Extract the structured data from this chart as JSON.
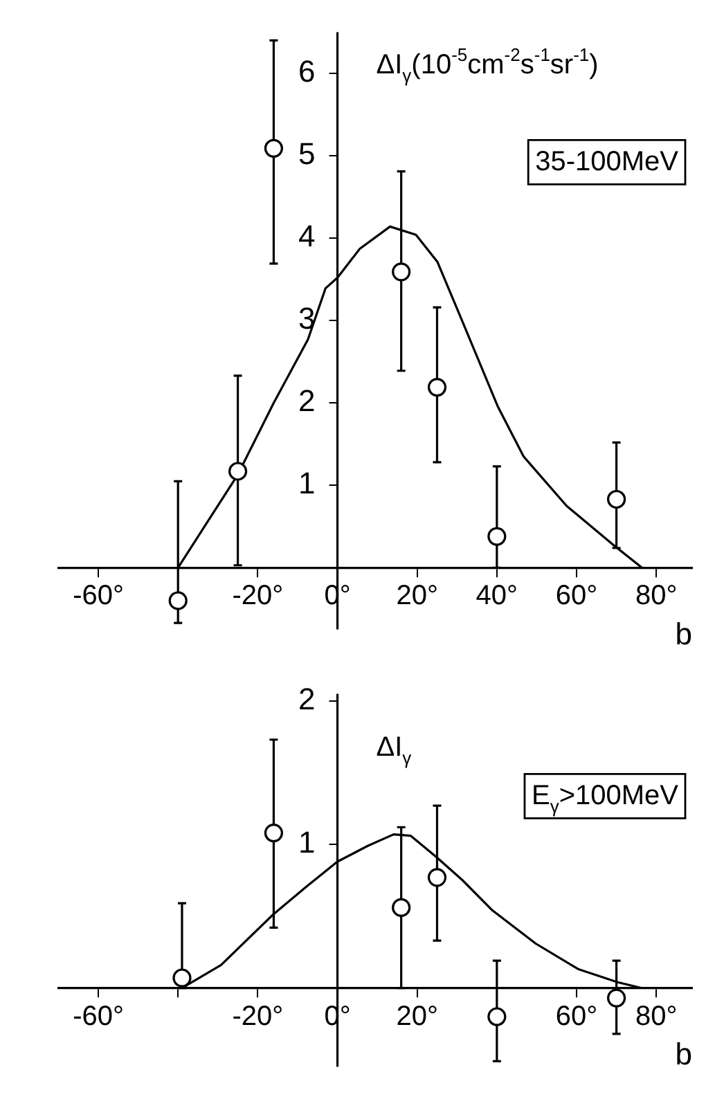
{
  "chart_data": [
    {
      "type": "scatter",
      "xlabel": "b",
      "ylabel": "ΔI$_{γ}$(10$^{-5}$cm$^{-2}$s$^{-1}$sr$^{-1}$)",
      "annotations": [
        "35-100MeV"
      ],
      "xlim": [
        -70,
        89
      ],
      "xticks": [
        {
          "value": -60,
          "label": "-60°"
        },
        {
          "value": -40,
          "label": null
        },
        {
          "value": -20,
          "label": "-20°"
        },
        {
          "value": 0,
          "label": "0°"
        },
        {
          "value": 20,
          "label": "20°"
        },
        {
          "value": 40,
          "label": "40°"
        },
        {
          "value": 60,
          "label": "60°"
        },
        {
          "value": 80,
          "label": "80°"
        }
      ],
      "ylim": [
        -0.75,
        6.5
      ],
      "yticks": [
        1,
        2,
        3,
        4,
        5,
        6
      ],
      "series": [
        {
          "type": "scatter",
          "marker": "circle",
          "color": "#000000",
          "x": [
            -40,
            -25,
            -16,
            16,
            25,
            40,
            70
          ],
          "values": [
            -0.4,
            1.17,
            5.09,
            3.59,
            2.19,
            0.38,
            0.83
          ],
          "errors": [
            [
              -0.67,
              1.05
            ],
            [
              0.03,
              2.33
            ],
            [
              3.69,
              6.4
            ],
            [
              2.39,
              4.81
            ],
            [
              1.28,
              3.16
            ],
            [
              0,
              1.23
            ],
            [
              0.24,
              1.52
            ]
          ]
        },
        {
          "type": "line",
          "marker": "none",
          "color": "#000000",
          "x": [
            -40,
            -25,
            -16,
            -7.4,
            -3,
            0,
            5.6,
            13.2,
            19.7,
            25.1,
            31.6,
            40.2,
            46.7,
            57.5,
            69.4,
            76.4
          ],
          "values": [
            0,
            1.13,
            2.0,
            2.77,
            3.39,
            3.52,
            3.87,
            4.14,
            4.04,
            3.71,
            2.96,
            1.96,
            1.35,
            0.75,
            0.27,
            0
          ]
        }
      ]
    },
    {
      "type": "scatter",
      "xlabel": "b",
      "ylabel": "ΔI$_{γ}$",
      "annotations": [
        "E$_{γ}$>100MeV"
      ],
      "xlim": [
        -70,
        89
      ],
      "xticks": [
        {
          "value": -60,
          "label": "-60°"
        },
        {
          "value": -40,
          "label": null
        },
        {
          "value": -20,
          "label": "-20°"
        },
        {
          "value": 0,
          "label": "0°"
        },
        {
          "value": 20,
          "label": "20°"
        },
        {
          "value": 40,
          "label": null
        },
        {
          "value": 60,
          "label": "60°"
        },
        {
          "value": 80,
          "label": "80°"
        }
      ],
      "ylim": [
        -0.55,
        2.05
      ],
      "yticks": [
        1,
        2
      ],
      "series": [
        {
          "type": "scatter",
          "marker": "circle",
          "color": "#000000",
          "x": [
            -39,
            -16,
            16,
            25,
            40,
            70
          ],
          "values": [
            0.07,
            1.08,
            0.56,
            0.77,
            -0.2,
            -0.07
          ],
          "errors": [
            [
              0,
              0.59
            ],
            [
              0.42,
              1.73
            ],
            [
              0,
              1.12
            ],
            [
              0.33,
              1.27
            ],
            [
              -0.51,
              0.19
            ],
            [
              -0.32,
              0.19
            ]
          ]
        },
        {
          "type": "line",
          "marker": "none",
          "color": "#000000",
          "x": [
            -39,
            -29.2,
            -16.2,
            -7.6,
            0,
            7.6,
            14.1,
            18.4,
            24.9,
            31.4,
            38.9,
            49.7,
            60.5,
            70.3,
            76.2
          ],
          "values": [
            0,
            0.16,
            0.51,
            0.71,
            0.88,
            0.99,
            1.07,
            1.06,
            0.91,
            0.75,
            0.54,
            0.31,
            0.13,
            0.04,
            0
          ]
        }
      ]
    }
  ]
}
